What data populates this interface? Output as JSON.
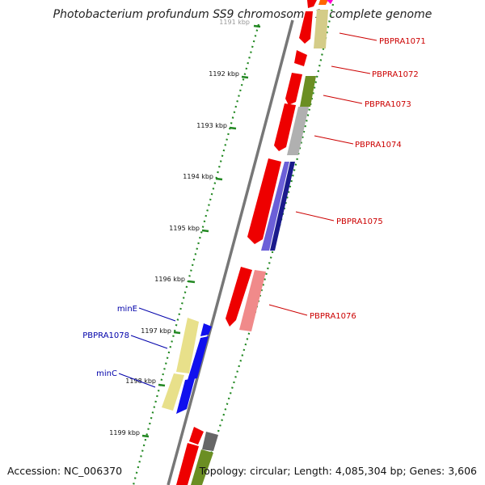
{
  "title": "Photobacterium profundum SS9 chromosome 1, complete genome",
  "footer": {
    "accession": "Accession: NC_006370",
    "summary": "Topology: circular; Length: 4,085,304 bp; Genes: 3,606"
  },
  "ruler_ticks": [
    "1191 kbp",
    "1192 kbp",
    "1193 kbp",
    "1194 kbp",
    "1195 kbp",
    "1196 kbp",
    "1197 kbp",
    "1198 kbp",
    "1199 kbp"
  ],
  "gene_labels_right": [
    "PBPRA1071",
    "PBPRA1072",
    "PBPRA1073",
    "PBPRA1074",
    "PBPRA1075",
    "PBPRA1076"
  ],
  "gene_labels_left": [
    "minE",
    "PBPRA1078",
    "minC"
  ],
  "colors": {
    "right_label": "#cc0000",
    "left_label": "#0000aa",
    "tick": "#228822",
    "backbone": "#777777",
    "cds_red": "#ee0000",
    "tan": "#d4cc88",
    "olive": "#6b8e23",
    "grey": "#b0b0b0",
    "navy": "#1a1a8c",
    "pink": "#f08a8a",
    "blue": "#1010ee",
    "khaki": "#e8e08a"
  }
}
